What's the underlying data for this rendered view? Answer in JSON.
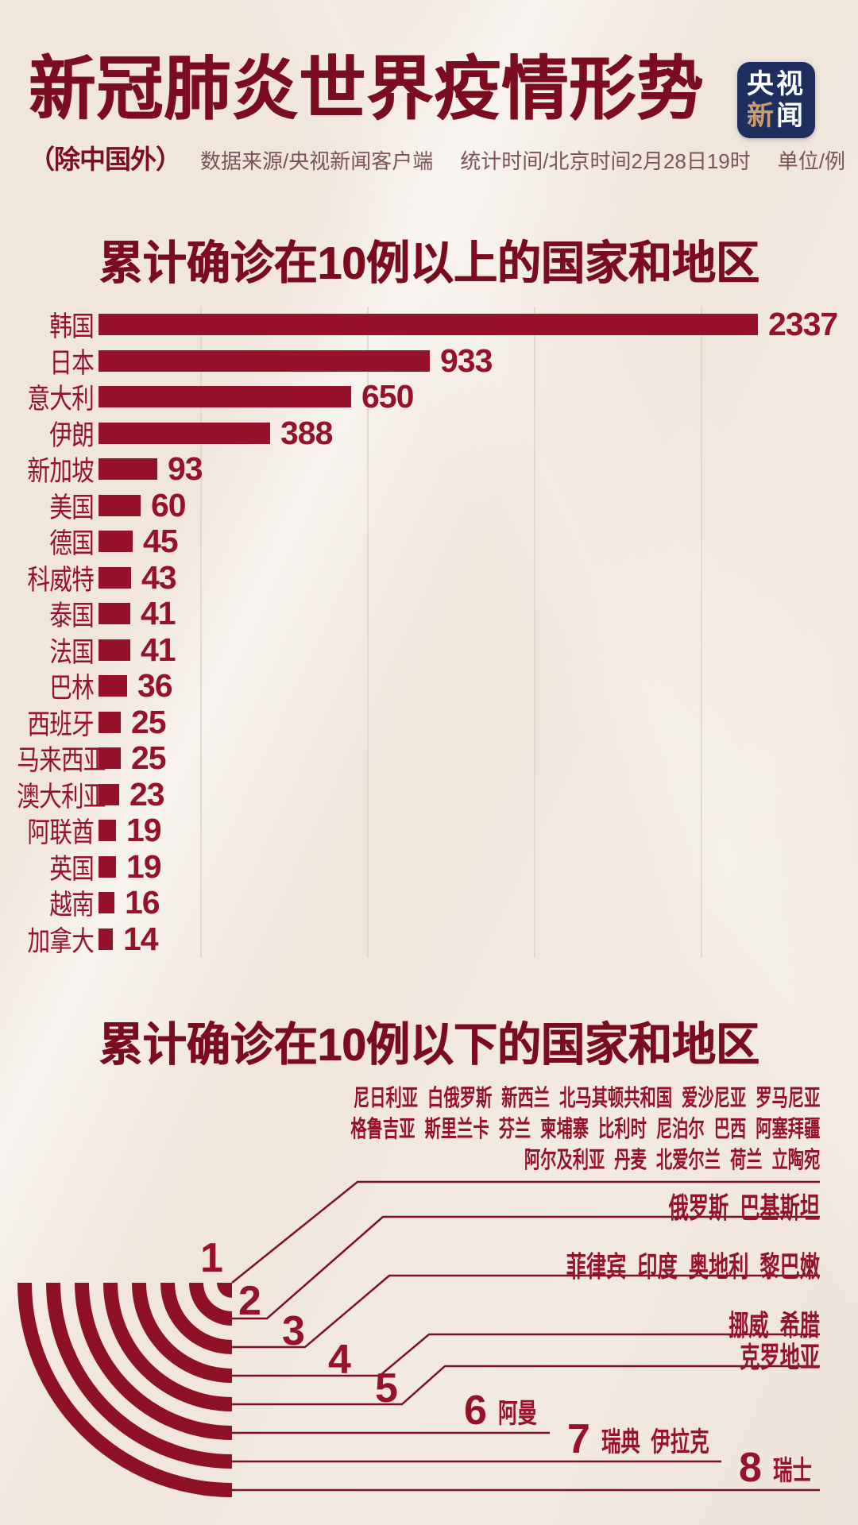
{
  "header": {
    "title": "新冠肺炎世界疫情形势",
    "scope_note": "（除中国外）",
    "meta": [
      "数据来源/央视新闻客户端",
      "统计时间/北京时间2月28日19时",
      "单位/例"
    ],
    "logo": {
      "row1": "央视",
      "row2_accent": "新",
      "row2_rest": "闻"
    }
  },
  "colors": {
    "background": "#F4EDE6",
    "title_maroon": "#7C0C20",
    "bar_maroon": "#96122B",
    "leader_line": "#7C1028",
    "gridline": "#E2D8CE",
    "meta_text": "#7D5358",
    "logo_navy": "#1D2E5F",
    "logo_tan": "#CA9C70"
  },
  "chart_data": [
    {
      "type": "bar",
      "title": "累计确诊在10例以上的国家和地区",
      "orientation": "horizontal",
      "unit": "例",
      "grid": true,
      "value_labels": "right-of-bar",
      "categories": [
        "韩国",
        "日本",
        "意大利",
        "伊朗",
        "新加坡",
        "美国",
        "德国",
        "科威特",
        "泰国",
        "法国",
        "巴林",
        "西班牙",
        "马来西亚",
        "澳大利亚",
        "阿联酋",
        "英国",
        "越南",
        "加拿大"
      ],
      "values": [
        2337,
        933,
        650,
        388,
        93,
        60,
        45,
        43,
        41,
        41,
        36,
        25,
        25,
        23,
        19,
        19,
        16,
        14
      ]
    },
    {
      "type": "table",
      "title": "累计确诊在10例以下的国家和地区",
      "groups": [
        {
          "cases": 1,
          "lines": [
            [
              "尼日利亚",
              "白俄罗斯",
              "新西兰",
              "北马其顿共和国",
              "爱沙尼亚",
              "罗马尼亚"
            ],
            [
              "格鲁吉亚",
              "斯里兰卡",
              "芬兰",
              "柬埔寨",
              "比利时",
              "尼泊尔",
              "巴西",
              "阿塞拜疆"
            ],
            [
              "阿尔及利亚",
              "丹麦",
              "北爱尔兰",
              "荷兰",
              "立陶宛"
            ]
          ]
        },
        {
          "cases": 2,
          "countries": [
            "俄罗斯",
            "巴基斯坦"
          ]
        },
        {
          "cases": 3,
          "countries": [
            "菲律宾",
            "印度",
            "奥地利",
            "黎巴嫩"
          ]
        },
        {
          "cases": 4,
          "countries": [
            "挪威",
            "希腊"
          ]
        },
        {
          "cases": 5,
          "countries": [
            "克罗地亚"
          ]
        },
        {
          "cases": 6,
          "countries": [
            "阿曼"
          ]
        },
        {
          "cases": 7,
          "countries": [
            "瑞典",
            "伊拉克"
          ]
        },
        {
          "cases": 8,
          "countries": [
            "瑞士"
          ]
        }
      ]
    }
  ]
}
